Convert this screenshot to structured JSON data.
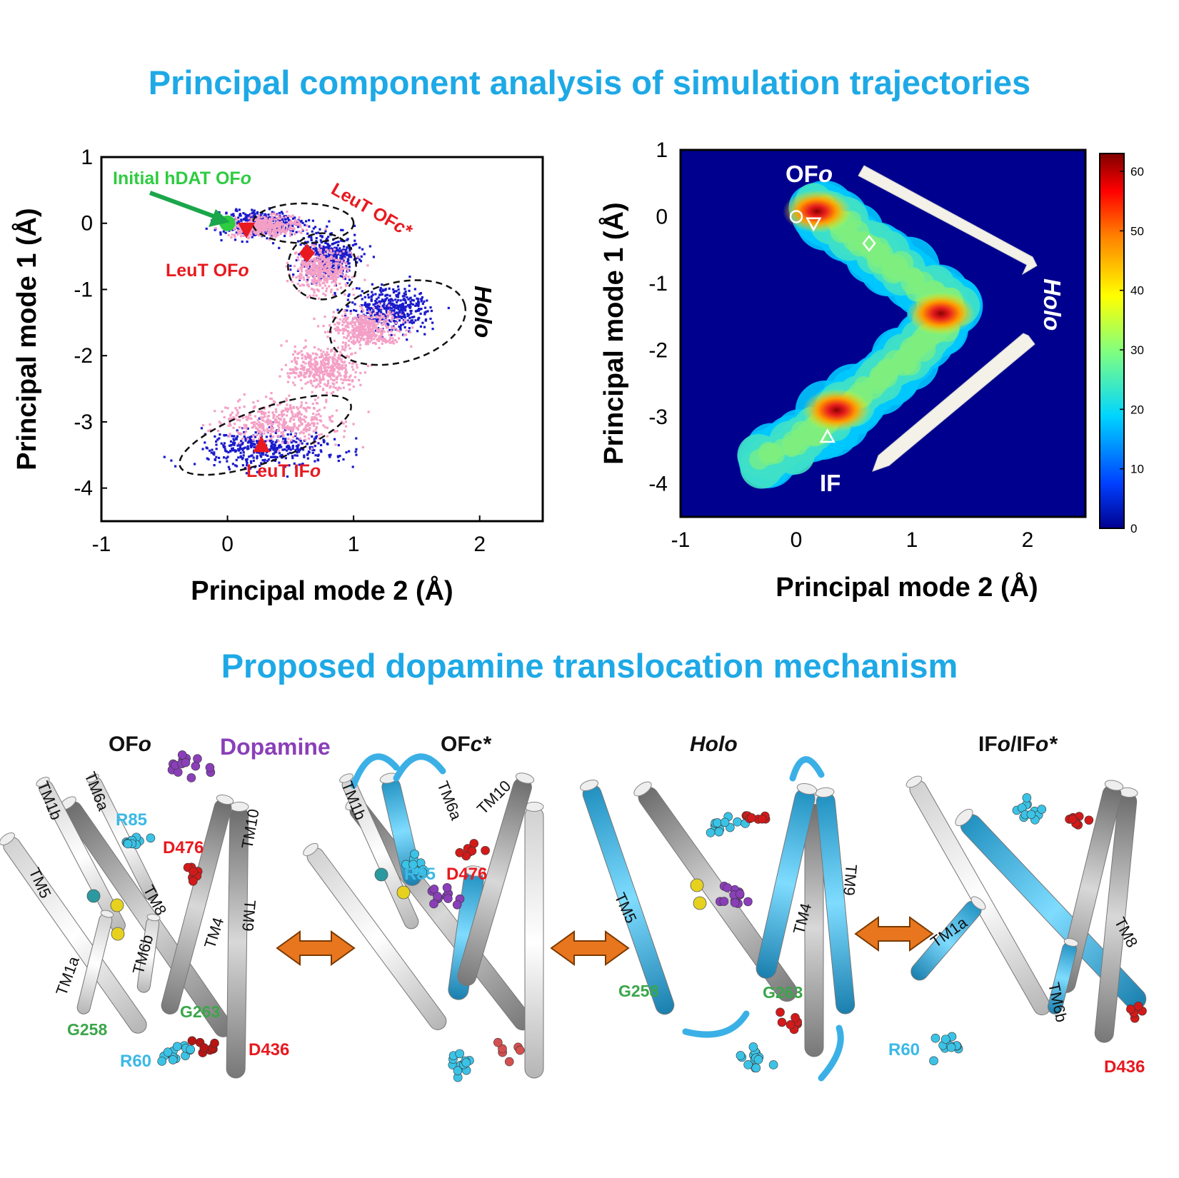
{
  "pca_title": "Principal component analysis of simulation trajectories",
  "mechanism_title": "Proposed dopamine translocation mechanism",
  "colors": {
    "title": "#1ea9e6",
    "hdat": "#1a1acc",
    "leut": "#f4a0c6",
    "marker": "#e8191f",
    "initial": "#2ecc40"
  },
  "chart_data": [
    {
      "type": "scatter",
      "xlabel": "Principal mode 2 (Å)",
      "ylabel": "Principal mode 1 (Å)",
      "xlim": [
        -1,
        2.5
      ],
      "ylim": [
        -4.5,
        1
      ],
      "xticks": [
        "-1",
        "0",
        "1",
        "2"
      ],
      "yticks": [
        "1",
        "0",
        "-1",
        "-2",
        "-3",
        "-4"
      ],
      "clusters": [
        {
          "name": "hDAT",
          "color": "#1a1acc",
          "regions": [
            [
              0.25,
              0.0,
              0.35,
              0.2
            ],
            [
              0.8,
              -0.5,
              0.25,
              0.4
            ],
            [
              1.3,
              -1.3,
              0.35,
              0.35
            ],
            [
              0.3,
              -3.4,
              0.6,
              0.3
            ]
          ]
        },
        {
          "name": "LeuT",
          "color": "#f4a0c6",
          "regions": [
            [
              0.3,
              -0.05,
              0.3,
              0.15
            ],
            [
              0.75,
              -0.7,
              0.25,
              0.35
            ],
            [
              1.1,
              -1.6,
              0.3,
              0.3
            ],
            [
              0.75,
              -2.2,
              0.3,
              0.35
            ],
            [
              0.4,
              -3.0,
              0.5,
              0.35
            ]
          ]
        }
      ],
      "ellipses": [
        [
          0.6,
          0.0,
          0.4,
          0.3,
          0
        ],
        [
          0.75,
          -0.65,
          0.27,
          0.5,
          -10
        ],
        [
          1.35,
          -1.5,
          0.55,
          0.6,
          -15
        ],
        [
          0.3,
          -3.2,
          0.72,
          0.4,
          -20
        ]
      ],
      "markers": [
        {
          "label": "Initial hDAT OFo",
          "shape": "circle",
          "x": 0.0,
          "y": 0.0,
          "color": "#2ecc40"
        },
        {
          "label": "LeuT OFo",
          "shape": "triangle-down",
          "x": 0.15,
          "y": -0.1,
          "color": "#e8191f"
        },
        {
          "label": "LeuT OFc*",
          "shape": "diamond",
          "x": 0.63,
          "y": -0.45,
          "color": "#e8191f"
        },
        {
          "label": "LeuT IFo",
          "shape": "triangle-up",
          "x": 0.27,
          "y": -3.35,
          "color": "#e8191f"
        }
      ],
      "annotations": {
        "initial": "Initial hDAT OF",
        "initial_italic": "o",
        "leut_ofo": "LeuT OF",
        "leut_ofo_italic": "o",
        "leut_ofc": "LeuT OF",
        "leut_ofc_italic": "c*",
        "leut_ifo": "LeuT IF",
        "leut_ifo_italic": "o",
        "holo": "Holo"
      }
    },
    {
      "type": "heatmap",
      "xlabel": "Principal mode 2 (Å)",
      "ylabel": "Principal mode 1 (Å)",
      "xlim": [
        -1,
        2.5
      ],
      "ylim": [
        -4.5,
        1
      ],
      "xticks": [
        "-1",
        "0",
        "1",
        "2"
      ],
      "yticks": [
        "1",
        "0",
        "-1",
        "-2",
        "-3",
        "-4"
      ],
      "colorbar": {
        "range": [
          0,
          63
        ],
        "ticks": [
          "60",
          "50",
          "40",
          "30",
          "20",
          "10",
          "0"
        ]
      },
      "hotspots": [
        {
          "x": 0.18,
          "y": 0.08,
          "value": 60
        },
        {
          "x": 1.25,
          "y": -1.45,
          "value": 55
        },
        {
          "x": 0.35,
          "y": -2.9,
          "value": 60
        }
      ],
      "open_markers": [
        {
          "shape": "circle",
          "x": 0.0,
          "y": 0.0
        },
        {
          "shape": "triangle-down",
          "x": 0.15,
          "y": -0.1
        },
        {
          "shape": "diamond",
          "x": 0.63,
          "y": -0.4
        },
        {
          "shape": "triangle-up",
          "x": 0.27,
          "y": -3.3
        }
      ],
      "annotations": {
        "ofo": "OF",
        "ofo_italic": "o",
        "holo": "Holo",
        "if": "IF"
      }
    }
  ],
  "mechanism": {
    "panels": [
      {
        "title": "OF",
        "title_italic": "o"
      },
      {
        "title": "OF",
        "title_italic": "c*"
      },
      {
        "title_italic": "Holo"
      },
      {
        "title": "IF",
        "title_italic": "o",
        "title_rest": "/IF",
        "title_italic2": "o*"
      }
    ],
    "labels": {
      "dopamine": "Dopamine",
      "tm1b": "TM1b",
      "tm6a": "TM6a",
      "tm10": "TM10",
      "tm5": "TM5",
      "tm8": "TM8",
      "tm4": "TM4",
      "tm9": "TM9",
      "tm1a": "TM1a",
      "tm6b": "TM6b",
      "r85": "R85",
      "d476": "D476",
      "g258": "G258",
      "g263": "G263",
      "r60": "R60",
      "d436": "D436"
    }
  }
}
